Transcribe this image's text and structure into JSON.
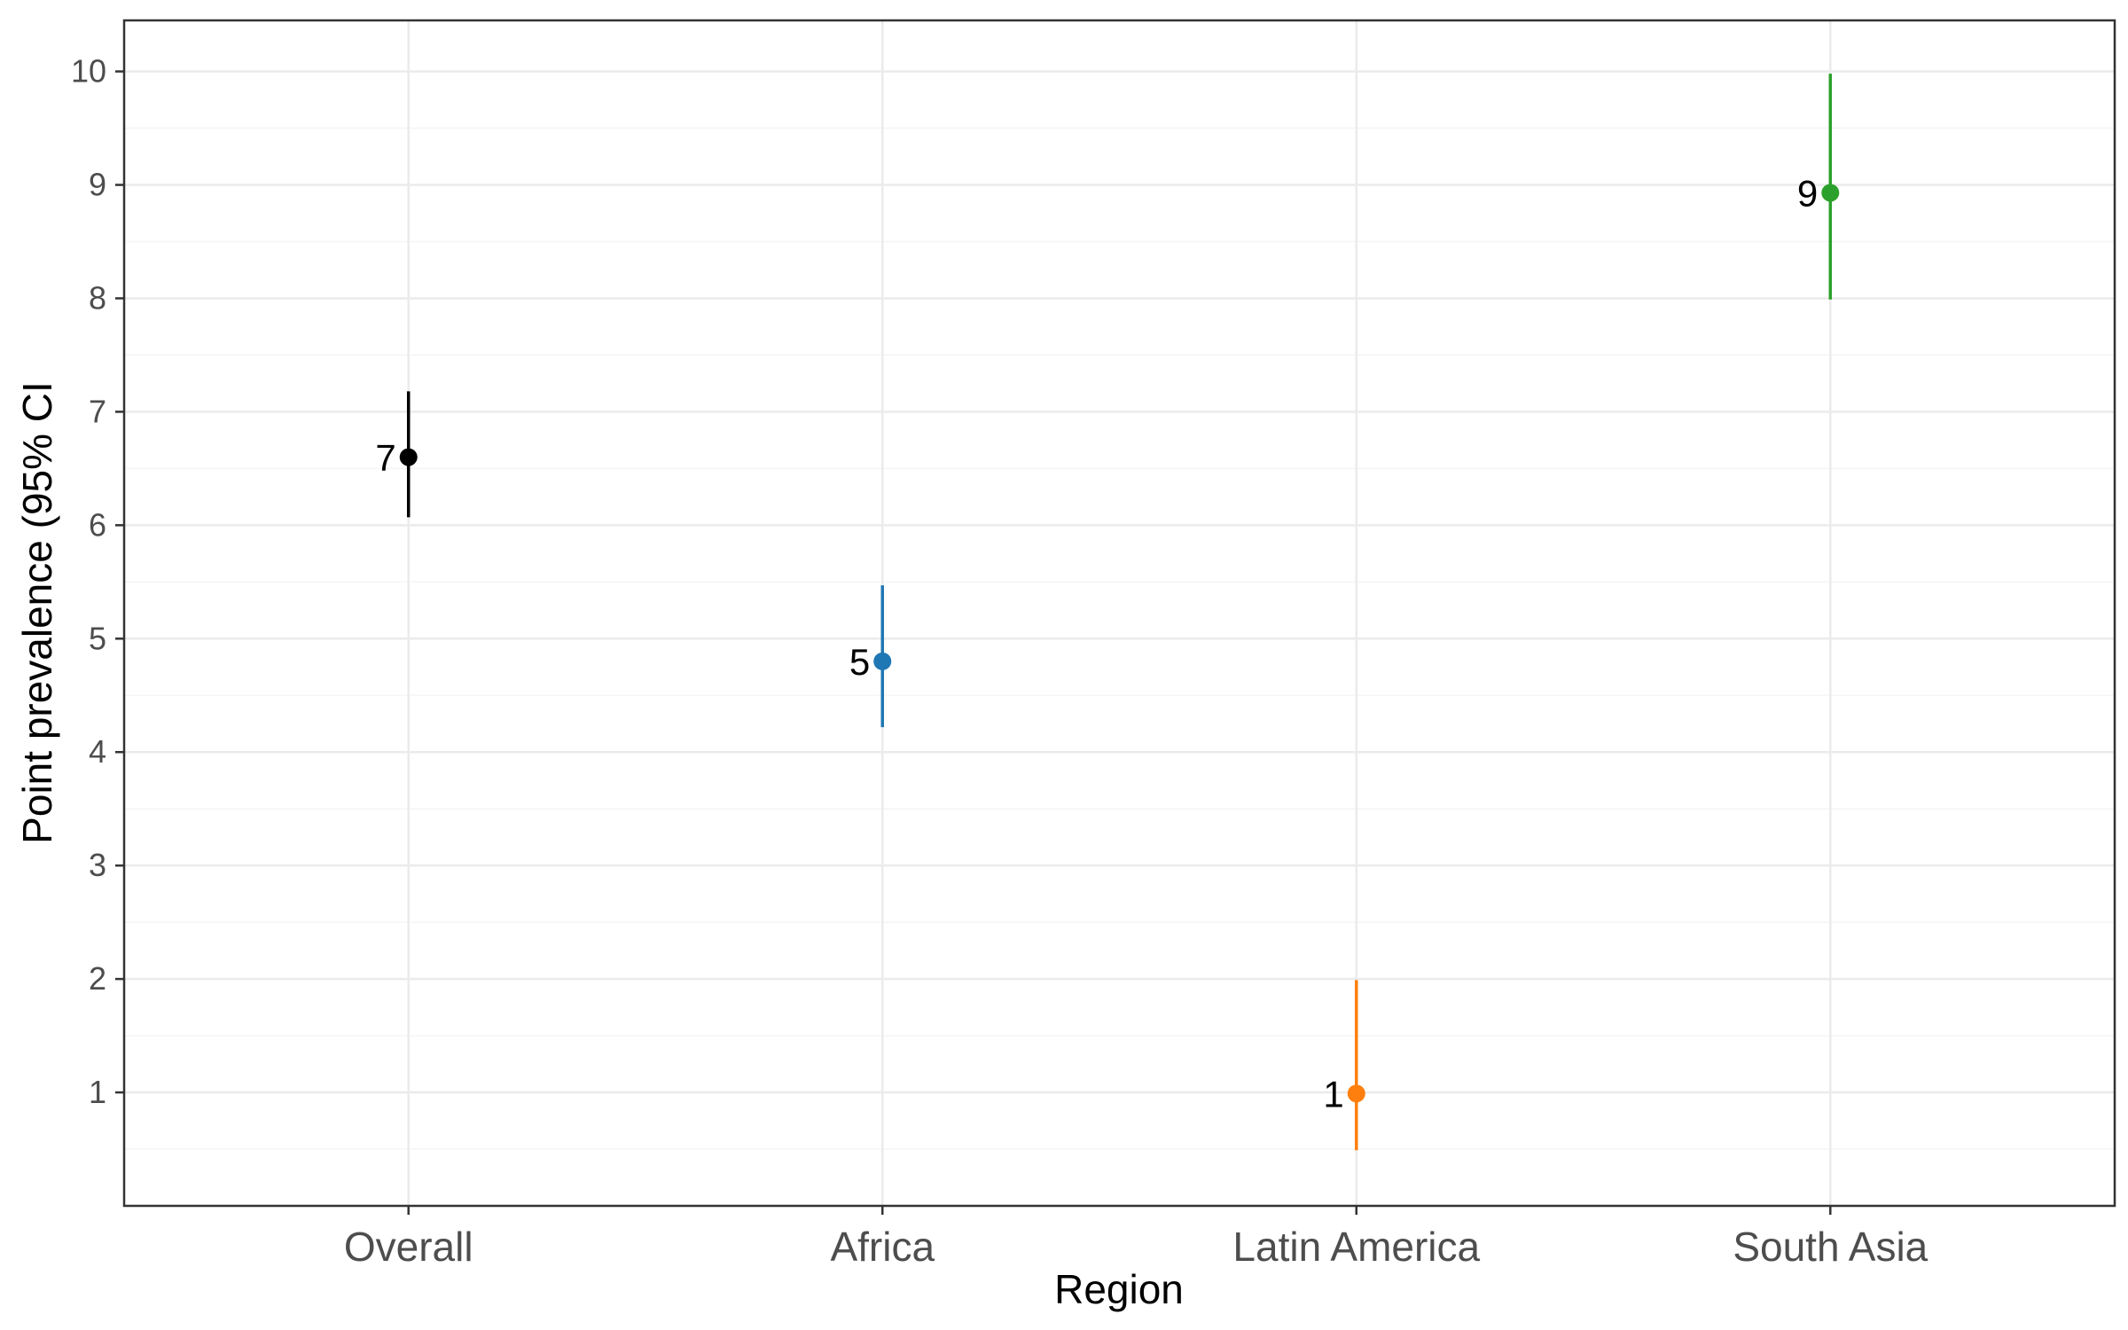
{
  "chart_data": {
    "type": "scatter",
    "subtype": "point-range",
    "xlabel": "Region",
    "ylabel": "Point prevalence (95% CI",
    "categories": [
      "Overall",
      "Africa",
      "Latin America",
      "South Asia"
    ],
    "ylim": [
      0,
      10.45
    ],
    "yticks": [
      1,
      2,
      3,
      4,
      5,
      6,
      7,
      8,
      9,
      10
    ],
    "grid": true,
    "legend": "none",
    "points": [
      {
        "category": "Overall",
        "estimate": 6.6,
        "lower": 6.07,
        "upper": 7.18,
        "label": "7",
        "color": "#000000"
      },
      {
        "category": "Africa",
        "estimate": 4.8,
        "lower": 4.22,
        "upper": 5.47,
        "label": "5",
        "color": "#1f77b4"
      },
      {
        "category": "Latin America",
        "estimate": 0.99,
        "lower": 0.49,
        "upper": 1.99,
        "label": "1",
        "color": "#ff7f0e"
      },
      {
        "category": "South Asia",
        "estimate": 8.93,
        "lower": 7.99,
        "upper": 9.98,
        "label": "9",
        "color": "#2ca02c"
      }
    ],
    "colors": {
      "panel_border": "#333333",
      "grid_major": "#ebebeb",
      "grid_minor": "#f5f5f5"
    }
  }
}
